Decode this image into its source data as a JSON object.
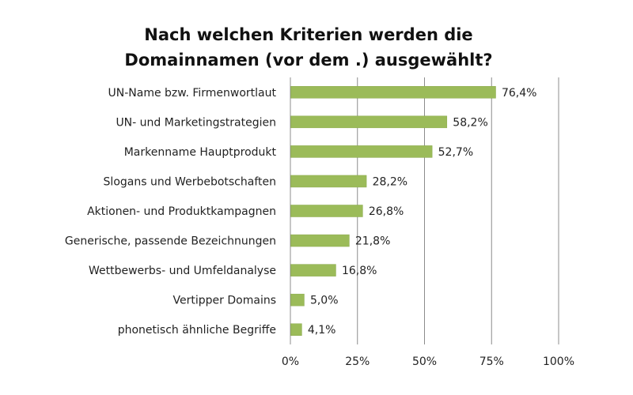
{
  "chart_data": {
    "type": "bar",
    "orientation": "horizontal",
    "title": "Nach welchen Kriterien werden die Domainnamen (vor dem .) ausgewählt?",
    "title_lines": [
      "Nach welchen Kriterien werden die",
      "Domainnamen (vor dem .) ausgewählt?"
    ],
    "categories": [
      "UN-Name bzw. Firmenwortlaut",
      "UN- und Marketingstrategien",
      "Markenname Hauptprodukt",
      "Slogans und Werbebotschaften",
      "Aktionen- und Produktkampagnen",
      "Generische, passende Bezeichnungen",
      "Wettbewerbs- und Umfeldanalyse",
      "Vertipper Domains",
      "phonetisch ähnliche Begriffe"
    ],
    "values": [
      76.4,
      58.2,
      52.7,
      28.2,
      26.8,
      21.8,
      16.8,
      5.0,
      4.1
    ],
    "value_labels": [
      "76,4%",
      "58,2%",
      "52,7%",
      "28,2%",
      "26,8%",
      "21,8%",
      "16,8%",
      "5,0%",
      "4,1%"
    ],
    "xlim": [
      0,
      100
    ],
    "x_ticks": [
      0,
      25,
      50,
      75,
      100
    ],
    "x_tick_labels": [
      "0%",
      "25%",
      "50%",
      "75%",
      "100%"
    ],
    "xlabel": "",
    "ylabel": "",
    "grid": "vertical",
    "legend": "none",
    "bar_color": "#9BBB59",
    "grid_color": "#8c8c8c"
  }
}
